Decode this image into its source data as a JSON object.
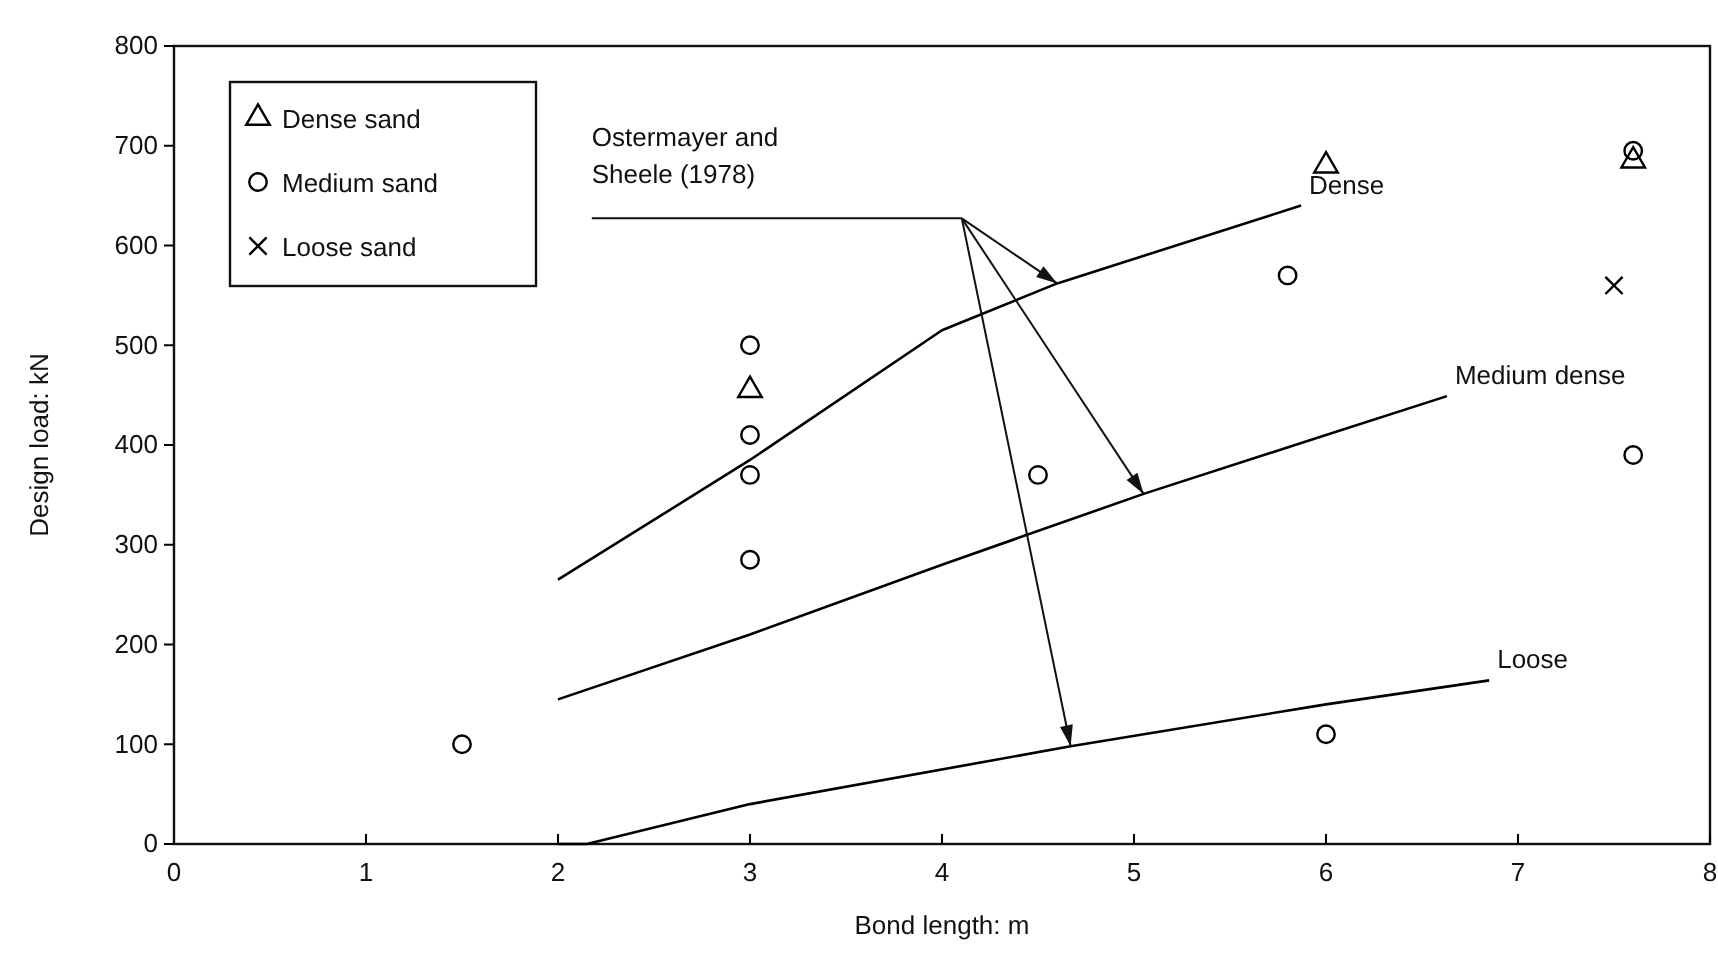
{
  "chart_data": {
    "type": "scatter",
    "xlabel": "Bond length: m",
    "ylabel": "Design load: kN",
    "xlim": [
      0,
      8
    ],
    "xticks": [
      0,
      1,
      2,
      3,
      4,
      5,
      6,
      7,
      8
    ],
    "ylim": [
      0,
      800
    ],
    "yticks": [
      0,
      100,
      200,
      300,
      400,
      500,
      600,
      700,
      800
    ],
    "legend": "top left",
    "annotations": [
      "Ostermayer and Sheele (1978)"
    ],
    "series": [
      {
        "name": "Dense sand",
        "marker": "triangle",
        "color": "#000000",
        "x": [
          3,
          6,
          7.6
        ],
        "values": [
          455,
          680,
          685
        ]
      },
      {
        "name": "Medium sand",
        "marker": "circle",
        "color": "#000000",
        "x": [
          1.5,
          3,
          3,
          3,
          3,
          4.5,
          5.8,
          6,
          7.6,
          7.6
        ],
        "values": [
          100,
          500,
          410,
          370,
          285,
          370,
          570,
          110,
          390,
          695
        ]
      },
      {
        "name": "Loose sand",
        "marker": "cross",
        "color": "#000000",
        "x": [
          7.5
        ],
        "values": [
          560
        ]
      },
      {
        "name": "Dense",
        "type": "line",
        "marker": "none",
        "color": "#000000",
        "x": [
          2,
          3,
          4,
          4.6,
          5.87
        ],
        "values": [
          265,
          385,
          515,
          562,
          640
        ]
      },
      {
        "name": "Medium dense",
        "type": "line",
        "marker": "none",
        "color": "#000000",
        "x": [
          2,
          3,
          4,
          5.05,
          6,
          6.63
        ],
        "values": [
          145,
          210,
          280,
          351,
          410,
          449
        ]
      },
      {
        "name": "Loose",
        "type": "line",
        "marker": "none",
        "color": "#000000",
        "x": [
          2,
          2.15,
          3,
          4.67,
          6,
          6.85
        ],
        "values": [
          0,
          0,
          40,
          98,
          140,
          164
        ]
      }
    ]
  }
}
